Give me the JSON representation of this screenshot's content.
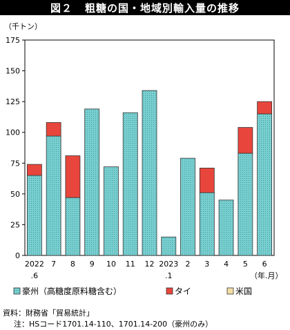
{
  "figure_label": "図２",
  "chart_data": {
    "type": "bar",
    "stacked": true,
    "title": "粗糖の国・地域別輸入量の推移",
    "ylabel": "（千トン）",
    "xlabel": "（年.月）",
    "ylim": [
      0,
      175
    ],
    "yticks": [
      0,
      25,
      50,
      75,
      100,
      125,
      150,
      175
    ],
    "categories": [
      {
        "top": "2022",
        "bottom": ".6"
      },
      {
        "top": "7",
        "bottom": ""
      },
      {
        "top": "8",
        "bottom": ""
      },
      {
        "top": "9",
        "bottom": ""
      },
      {
        "top": "10",
        "bottom": ""
      },
      {
        "top": "11",
        "bottom": ""
      },
      {
        "top": "12",
        "bottom": ""
      },
      {
        "top": "2023",
        "bottom": ".1"
      },
      {
        "top": "2",
        "bottom": ""
      },
      {
        "top": "3",
        "bottom": ""
      },
      {
        "top": "4",
        "bottom": ""
      },
      {
        "top": "5",
        "bottom": ""
      },
      {
        "top": "6",
        "bottom": ""
      }
    ],
    "series": [
      {
        "name": "豪州（高糖度原料糖含む）",
        "color": "#6cc6c8",
        "pattern": "dotted",
        "values": [
          65,
          97,
          47,
          119,
          72,
          116,
          134,
          15,
          79,
          51,
          45,
          83,
          115
        ]
      },
      {
        "name": "タイ",
        "color": "#e8463c",
        "pattern": "solid",
        "values": [
          9,
          11,
          34,
          0,
          0,
          0,
          0,
          0,
          0,
          20,
          0,
          21,
          10
        ]
      },
      {
        "name": "米国",
        "color": "#f2dfa6",
        "pattern": "solid",
        "values": [
          0,
          0,
          0,
          0,
          0,
          0,
          0,
          0,
          0,
          0,
          0,
          0,
          0
        ]
      }
    ],
    "grid": false,
    "legend_position": "bottom"
  },
  "notes": {
    "source": "資料：財務省「貿易統計」",
    "note": "注：HSコード1701.14-110、1701.14-200（豪州のみ）"
  }
}
